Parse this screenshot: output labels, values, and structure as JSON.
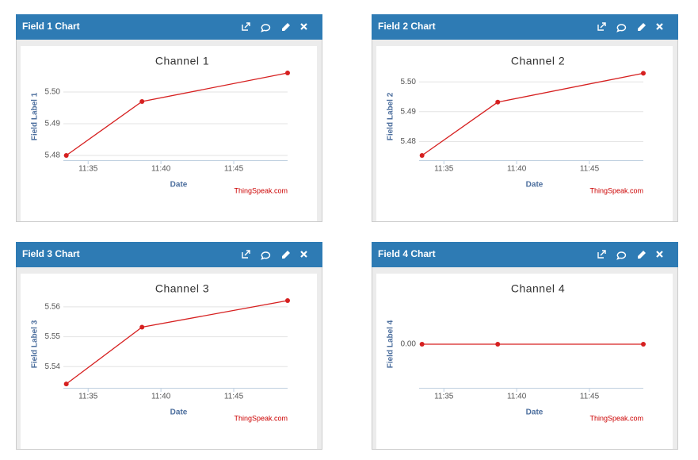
{
  "panels": [
    {
      "header": "Field 1 Chart"
    },
    {
      "header": "Field 2 Chart"
    },
    {
      "header": "Field 3 Chart"
    },
    {
      "header": "Field 4 Chart"
    }
  ],
  "chart_data": [
    {
      "type": "line",
      "title": "Channel 1",
      "xlabel": "Date",
      "ylabel": "Field Label 1",
      "credit": "ThingSpeak.com",
      "color": "#d62020",
      "x": [
        693.5,
        698.7,
        708.7
      ],
      "values": [
        5.48,
        5.497,
        5.506
      ],
      "xlim": [
        693.3,
        708.7
      ],
      "xticks": [
        {
          "value": 695,
          "label": "11:35"
        },
        {
          "value": 700,
          "label": "11:40"
        },
        {
          "value": 705,
          "label": "11:45"
        }
      ],
      "ylim": [
        5.4785,
        5.506
      ],
      "yticks": [
        {
          "value": 5.48,
          "label": "5.48"
        },
        {
          "value": 5.49,
          "label": "5.49"
        },
        {
          "value": 5.5,
          "label": "5.50"
        }
      ],
      "grid": true
    },
    {
      "type": "line",
      "title": "Channel 2",
      "xlabel": "Date",
      "ylabel": "Field Label 2",
      "credit": "ThingSpeak.com",
      "color": "#d62020",
      "x": [
        693.5,
        698.7,
        708.7
      ],
      "values": [
        5.4753,
        5.4932,
        5.5029
      ],
      "xlim": [
        693.3,
        708.7
      ],
      "xticks": [
        {
          "value": 695,
          "label": "11:35"
        },
        {
          "value": 700,
          "label": "11:40"
        },
        {
          "value": 705,
          "label": "11:45"
        }
      ],
      "ylim": [
        5.4737,
        5.503
      ],
      "yticks": [
        {
          "value": 5.48,
          "label": "5.48"
        },
        {
          "value": 5.49,
          "label": "5.49"
        },
        {
          "value": 5.5,
          "label": "5.50"
        }
      ],
      "grid": true
    },
    {
      "type": "line",
      "title": "Channel 3",
      "xlabel": "Date",
      "ylabel": "Field Label 3",
      "credit": "ThingSpeak.com",
      "color": "#d62020",
      "x": [
        693.5,
        698.7,
        708.7
      ],
      "values": [
        5.5342,
        5.5532,
        5.5621
      ],
      "xlim": [
        693.3,
        708.7
      ],
      "xticks": [
        {
          "value": 695,
          "label": "11:35"
        },
        {
          "value": 700,
          "label": "11:40"
        },
        {
          "value": 705,
          "label": "11:45"
        }
      ],
      "ylim": [
        5.5329,
        5.5621
      ],
      "yticks": [
        5.54,
        5.55,
        5.56
      ],
      "grid": true
    },
    {
      "type": "line",
      "title": "Channel 4",
      "xlabel": "Date",
      "ylabel": "Field Label 4",
      "credit": "ThingSpeak.com",
      "color": "#d62020",
      "x": [
        693.5,
        698.7,
        708.7
      ],
      "values": [
        0,
        0,
        0
      ],
      "xlim": [
        693.3,
        708.7
      ],
      "xticks": [
        {
          "value": 695,
          "label": "11:35"
        },
        {
          "value": 700,
          "label": "11:40"
        },
        {
          "value": 705,
          "label": "11:45"
        }
      ],
      "ylim": [
        -1,
        1
      ],
      "yticks": [
        {
          "value": 0,
          "label": "0.00"
        }
      ],
      "grid": true
    }
  ]
}
